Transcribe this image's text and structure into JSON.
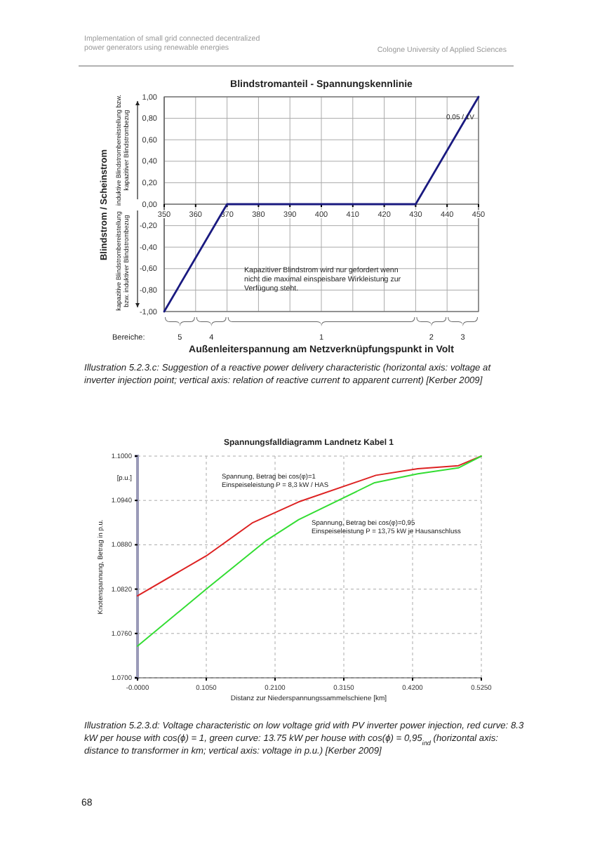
{
  "chart_data": [
    {
      "type": "line",
      "title": "Blindstromanteil - Spannungskennlinie",
      "xlabel": "Außenleiterspannung am Netzverknüpfungspunkt in Volt",
      "ylabel": "Blindstrom / Scheinstrom",
      "x": [
        350,
        370,
        430,
        450
      ],
      "series": [
        {
          "color": "#1a1a80",
          "values": [
            -1,
            0,
            0,
            1
          ]
        }
      ],
      "xlim": [
        350,
        450
      ],
      "xticks": [
        350,
        360,
        370,
        380,
        390,
        400,
        410,
        420,
        430,
        440,
        450
      ],
      "ylim": [
        -1,
        1
      ],
      "yticks": [
        {
          "value": -1,
          "label": "-1,00"
        },
        {
          "value": -0.8,
          "label": "-0,80"
        },
        {
          "value": -0.6,
          "label": "-0,60"
        },
        {
          "value": -0.4,
          "label": "-0,40"
        },
        {
          "value": -0.2,
          "label": "-0,20"
        },
        {
          "value": 0,
          "label": "0,00"
        },
        {
          "value": 0.2,
          "label": "0,20"
        },
        {
          "value": 0.4,
          "label": "0,40"
        },
        {
          "value": 0.6,
          "label": "0,60"
        },
        {
          "value": 0.8,
          "label": "0,80"
        },
        {
          "value": 1,
          "label": "1,00"
        }
      ],
      "grid": true,
      "annotations": [
        "Implementation of small grid connected decentralized power generators using renewable energies",
        "Cologne University of Applied Sciences",
        "0,05 / 1V",
        "Kapazitiver Blindstrom wird nur gefordert wenn nicht die maximal einspeisbare Wirkleistung zur Verfügung steht.",
        "induktive Blindstrombereitstellung bzw. kapazitiver Blindstrombezug",
        "kapazitive Blindstrombereitstellung bzw. induktiver Blindstrombezug",
        "Bereiche:",
        "5",
        "4",
        "1",
        "2",
        "3",
        "Illustration 5.2.3.c: Suggestion of a reactive power delivery characteristic (horizontal axis: voltage at inverter injection point; vertical axis: relation of reactive current to apparent current) [Kerber 2009]"
      ]
    },
    {
      "type": "line",
      "title": "Spannungsfalldiagramm Landnetz Kabel 1",
      "xlabel": "Distanz zur Niederspannungssammelschiene [km]",
      "ylabel": "Knotenspannung, Betrag in p.u.",
      "series": [
        {
          "color": "#dd2222",
          "x": [
            0,
            0.105,
            0.176,
            0.246,
            0.364,
            0.428,
            0.49,
            0.525
          ],
          "values": [
            1.0811,
            1.0865,
            1.091,
            1.0938,
            1.0974,
            1.0983,
            1.0987,
            1.1
          ]
        },
        {
          "color": "#33dd33",
          "x": [
            0,
            0.105,
            0.197,
            0.246,
            0.362,
            0.428,
            0.49,
            0.525
          ],
          "values": [
            1.0743,
            1.082,
            1.0886,
            1.0914,
            1.0964,
            1.0976,
            1.0984,
            1.1
          ]
        }
      ],
      "xlim": [
        0,
        0.525
      ],
      "xticks": [
        {
          "value": 0,
          "label": "-0.0000"
        },
        {
          "value": 0.105,
          "label": "0.1050"
        },
        {
          "value": 0.21,
          "label": "0.2100"
        },
        {
          "value": 0.315,
          "label": "0.3150"
        },
        {
          "value": 0.42,
          "label": "0.4200"
        },
        {
          "value": 0.525,
          "label": "0.5250"
        }
      ],
      "ylim": [
        1.07,
        1.1
      ],
      "yticks": [
        {
          "value": 1.07,
          "label": "1.0700"
        },
        {
          "value": 1.076,
          "label": "1.0760"
        },
        {
          "value": 1.082,
          "label": "1.0820"
        },
        {
          "value": 1.088,
          "label": "1.0880"
        },
        {
          "value": 1.094,
          "label": "1.0940"
        },
        {
          "value": 1.1,
          "label": "1.1000"
        }
      ],
      "grid": true,
      "annotations": [
        "[p.u.]",
        "Spannung, Betrag bei cos(φ)=1 Einspeiseleistung P = 8,3 kW / HAS",
        "Spannung, Betrag bei cos(φ)=0,95 Einspeiseleistung P = 13,75 kW je Hausanschluss",
        "Illustration 5.2.3.d: Voltage characteristic on low voltage grid with PV inverter power injection, red curve: 8.3 kW per house with cos(ϕ) = 1, green curve: 13.75 kW per house with cos(ϕ) = 0,95$_{ind}$ (horizontal axis: distance to transformer in km; vertical axis: voltage in p.u.) [Kerber 2009]",
        "68"
      ]
    }
  ]
}
